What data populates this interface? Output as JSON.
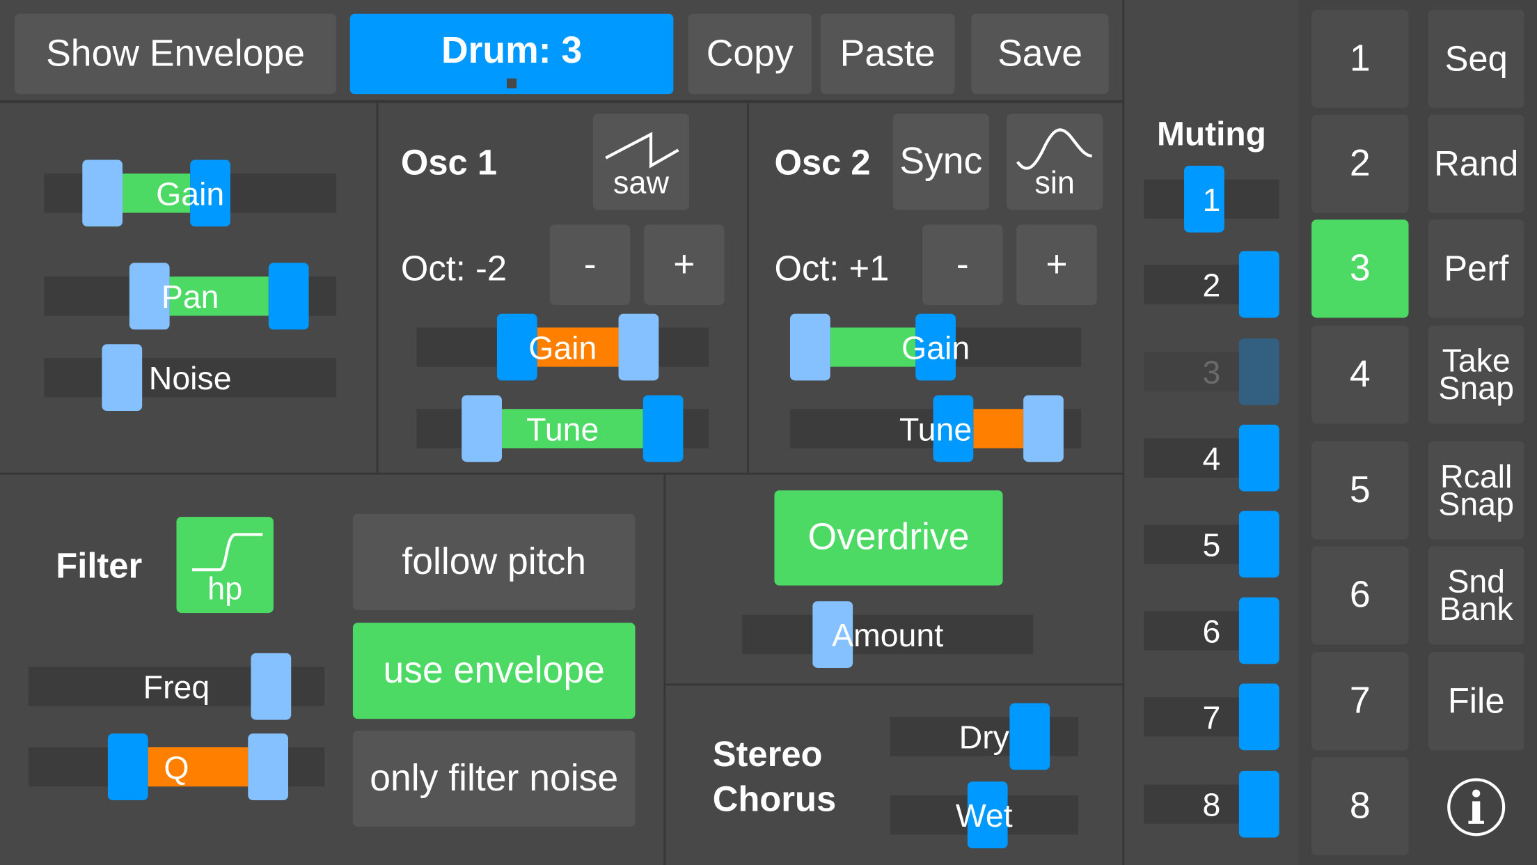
{
  "colors": {
    "accent_blue": "#0099ff",
    "handle_light": "#85c1ff",
    "green": "#4cd964",
    "orange": "#ff8000",
    "muted_handle": "#335f80"
  },
  "toolbar": {
    "show_envelope": "Show Envelope",
    "drum": "Drum: 3",
    "copy": "Copy",
    "paste": "Paste",
    "save": "Save"
  },
  "osc1": {
    "title": "Osc 1",
    "wave_label": "saw",
    "wave_icon": "sawtooth-wave-icon",
    "octave": "Oct: -2",
    "minus": "-",
    "plus": "+"
  },
  "osc2": {
    "title": "Osc 2",
    "sync": "Sync",
    "wave_label": "sin",
    "wave_icon": "sine-wave-icon",
    "octave": "Oct: +1",
    "minus": "-",
    "plus": "+"
  },
  "filter": {
    "title": "Filter",
    "type_label": "hp",
    "type_icon": "highpass-icon",
    "follow_pitch": "follow pitch",
    "use_envelope": "use envelope",
    "only_filter_noise": "only filter noise"
  },
  "overdrive": {
    "label": "Overdrive"
  },
  "chorus": {
    "title_line1": "Stereo",
    "title_line2": "Chorus"
  },
  "sliders": {
    "gain": {
      "label": "Gain",
      "low": 0.15,
      "high": 0.58,
      "fill": "green",
      "low_handle": "light",
      "high_handle": "blue"
    },
    "pan": {
      "label": "Pan",
      "low": 0.34,
      "high": 0.89,
      "fill": "green",
      "low_handle": "light",
      "high_handle": "blue"
    },
    "noise": {
      "label": "Noise",
      "low": 0.23,
      "low_handle": "light"
    },
    "osc1_gain": {
      "label": "Gain",
      "low": 0.32,
      "high": 0.8,
      "fill": "orange",
      "low_handle": "blue",
      "high_handle": "light"
    },
    "osc1_tune": {
      "label": "Tune",
      "low": 0.18,
      "high": 0.9,
      "fill": "green",
      "low_handle": "light",
      "high_handle": "blue"
    },
    "osc2_gain": {
      "label": "Gain",
      "low": 0.0,
      "high": 0.5,
      "fill": "green",
      "low_handle": "light",
      "high_handle": "blue"
    },
    "osc2_tune": {
      "label": "Tune",
      "low": 0.57,
      "high": 0.93,
      "fill": "orange",
      "low_handle": "blue",
      "high_handle": "light"
    },
    "freq": {
      "label": "Freq",
      "low": 0.87,
      "low_handle": "light"
    },
    "q": {
      "label": "Q",
      "low": 0.31,
      "high": 0.86,
      "fill": "orange",
      "low_handle": "blue",
      "high_handle": "light"
    },
    "amount": {
      "label": "Amount",
      "low": 0.28,
      "low_handle": "light"
    },
    "dry": {
      "label": "Dry",
      "low": 0.81,
      "low_handle": "blue"
    },
    "wet": {
      "label": "Wet",
      "low": 0.52,
      "low_handle": "blue"
    }
  },
  "muting": {
    "title": "Muting",
    "tracks": [
      {
        "label": "1",
        "value": 0.42,
        "muted": false
      },
      {
        "label": "2",
        "value": 1.0,
        "muted": false
      },
      {
        "label": "3",
        "value": 1.0,
        "muted": true
      },
      {
        "label": "4",
        "value": 1.0,
        "muted": false
      },
      {
        "label": "5",
        "value": 1.0,
        "muted": false
      },
      {
        "label": "6",
        "value": 1.0,
        "muted": false
      },
      {
        "label": "7",
        "value": 1.0,
        "muted": false
      },
      {
        "label": "8",
        "value": 1.0,
        "muted": false
      }
    ]
  },
  "drums": {
    "selected": "3",
    "items": [
      "1",
      "2",
      "3",
      "4",
      "5",
      "6",
      "7",
      "8"
    ]
  },
  "menu": {
    "items": [
      "Seq",
      "Rand",
      "Perf",
      "Take Snap",
      "Rcall Snap",
      "Snd Bank",
      "File"
    ],
    "info_icon": "info-icon"
  }
}
